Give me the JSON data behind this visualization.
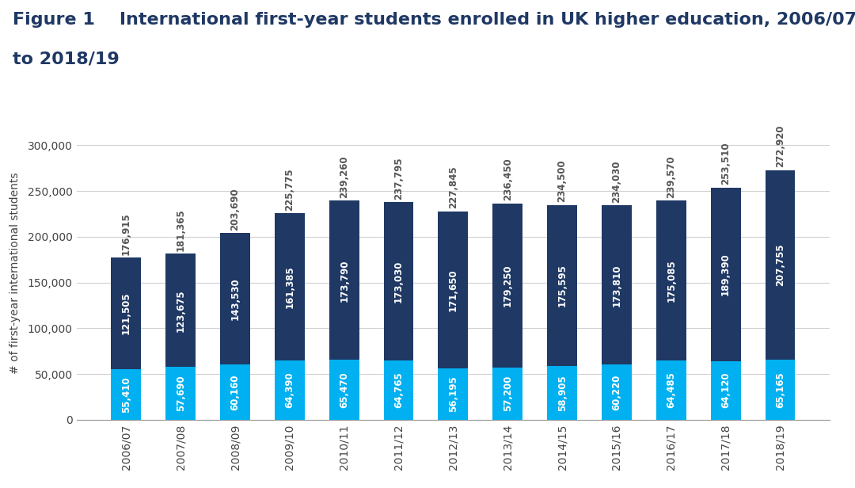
{
  "title_line1": "Figure 1    International first-year students enrolled in UK higher education, 2006/07",
  "title_line2": "to 2018/19",
  "ylabel": "# of first-year international students",
  "categories": [
    "2006/07",
    "2007/08",
    "2008/09",
    "2009/10",
    "2010/11",
    "2011/12",
    "2012/13",
    "2013/14",
    "2014/15",
    "2015/16",
    "2016/17",
    "2017/18",
    "2018/19"
  ],
  "eu_values": [
    55410,
    57690,
    60160,
    64390,
    65470,
    64765,
    56195,
    57200,
    58905,
    60220,
    64485,
    64120,
    65165
  ],
  "noneu_values": [
    121505,
    123675,
    143530,
    161385,
    173790,
    173030,
    171650,
    179250,
    175595,
    173810,
    175085,
    189390,
    207755
  ],
  "totals": [
    176915,
    181365,
    203690,
    225775,
    239260,
    237795,
    227845,
    236450,
    234500,
    234030,
    239570,
    253510,
    272920
  ],
  "eu_color": "#00B0F0",
  "noneu_color": "#1F3864",
  "title_color": "#1F3864",
  "background_color": "#FFFFFF",
  "ylim": [
    0,
    320000
  ],
  "yticks": [
    0,
    50000,
    100000,
    150000,
    200000,
    250000,
    300000
  ],
  "ytick_labels": [
    "0",
    "50,000",
    "100,000",
    "150,000",
    "200,000",
    "250,000",
    "300,000"
  ],
  "grid_color": "#D0D0D0",
  "bar_width": 0.55,
  "label_fontsize": 8.5,
  "title_fontsize": 16,
  "axis_label_fontsize": 10,
  "tick_fontsize": 10
}
